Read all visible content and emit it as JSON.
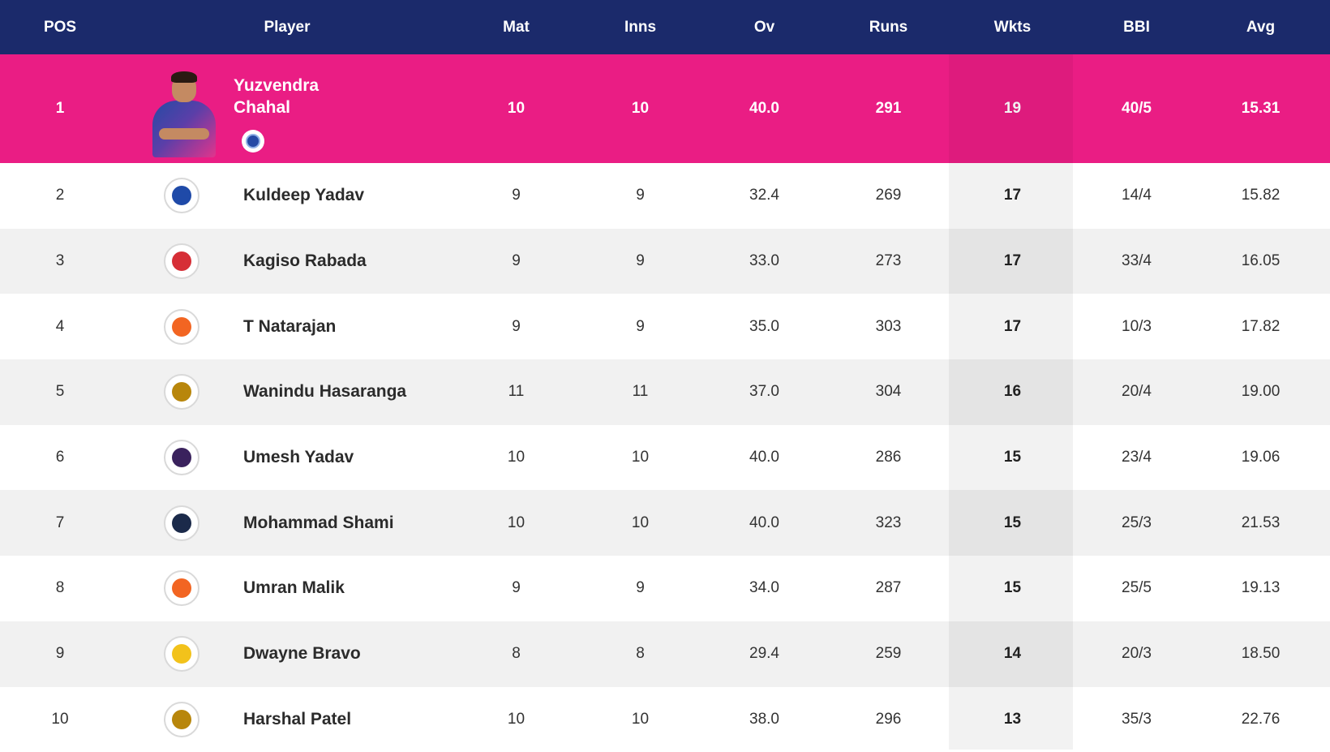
{
  "headers": {
    "pos": "POS",
    "player": "Player",
    "mat": "Mat",
    "inns": "Inns",
    "ov": "Ov",
    "runs": "Runs",
    "wkts": "Wkts",
    "bbi": "BBI",
    "avg": "Avg"
  },
  "colors": {
    "header_bg": "#1b2a6b",
    "leader_bg": "#ea1d84",
    "alt_row_bg": "#f1f1f1"
  },
  "leader": {
    "pos": "1",
    "name_line1": "Yuzvendra",
    "name_line2": "Chahal",
    "team_icon": "rajasthan-royals-logo-icon",
    "mat": "10",
    "inns": "10",
    "ov": "40.0",
    "runs": "291",
    "wkts": "19",
    "bbi": "40/5",
    "avg": "15.31"
  },
  "rows": [
    {
      "pos": "2",
      "name": "Kuldeep Yadav",
      "team_icon": "delhi-capitals-logo-icon",
      "team_color": "#1f4aa8",
      "mat": "9",
      "inns": "9",
      "ov": "32.4",
      "runs": "269",
      "wkts": "17",
      "bbi": "14/4",
      "avg": "15.82"
    },
    {
      "pos": "3",
      "name": "Kagiso Rabada",
      "team_icon": "punjab-kings-logo-icon",
      "team_color": "#d62e36",
      "mat": "9",
      "inns": "9",
      "ov": "33.0",
      "runs": "273",
      "wkts": "17",
      "bbi": "33/4",
      "avg": "16.05"
    },
    {
      "pos": "4",
      "name": "T Natarajan",
      "team_icon": "sunrisers-hyderabad-logo-icon",
      "team_color": "#f26522",
      "mat": "9",
      "inns": "9",
      "ov": "35.0",
      "runs": "303",
      "wkts": "17",
      "bbi": "10/3",
      "avg": "17.82"
    },
    {
      "pos": "5",
      "name": "Wanindu Hasaranga",
      "team_icon": "royal-challengers-bangalore-logo-icon",
      "team_color": "#b8860b",
      "mat": "11",
      "inns": "11",
      "ov": "37.0",
      "runs": "304",
      "wkts": "16",
      "bbi": "20/4",
      "avg": "19.00"
    },
    {
      "pos": "6",
      "name": "Umesh Yadav",
      "team_icon": "kolkata-knight-riders-logo-icon",
      "team_color": "#3a225d",
      "mat": "10",
      "inns": "10",
      "ov": "40.0",
      "runs": "286",
      "wkts": "15",
      "bbi": "23/4",
      "avg": "19.06"
    },
    {
      "pos": "7",
      "name": "Mohammad Shami",
      "team_icon": "gujarat-titans-logo-icon",
      "team_color": "#1b2a4a",
      "mat": "10",
      "inns": "10",
      "ov": "40.0",
      "runs": "323",
      "wkts": "15",
      "bbi": "25/3",
      "avg": "21.53"
    },
    {
      "pos": "8",
      "name": "Umran Malik",
      "team_icon": "sunrisers-hyderabad-logo-icon",
      "team_color": "#f26522",
      "mat": "9",
      "inns": "9",
      "ov": "34.0",
      "runs": "287",
      "wkts": "15",
      "bbi": "25/5",
      "avg": "19.13"
    },
    {
      "pos": "9",
      "name": "Dwayne Bravo",
      "team_icon": "chennai-super-kings-logo-icon",
      "team_color": "#f2c21b",
      "mat": "8",
      "inns": "8",
      "ov": "29.4",
      "runs": "259",
      "wkts": "14",
      "bbi": "20/3",
      "avg": "18.50"
    },
    {
      "pos": "10",
      "name": "Harshal Patel",
      "team_icon": "royal-challengers-bangalore-logo-icon",
      "team_color": "#b8860b",
      "mat": "10",
      "inns": "10",
      "ov": "38.0",
      "runs": "296",
      "wkts": "13",
      "bbi": "35/3",
      "avg": "22.76"
    }
  ]
}
